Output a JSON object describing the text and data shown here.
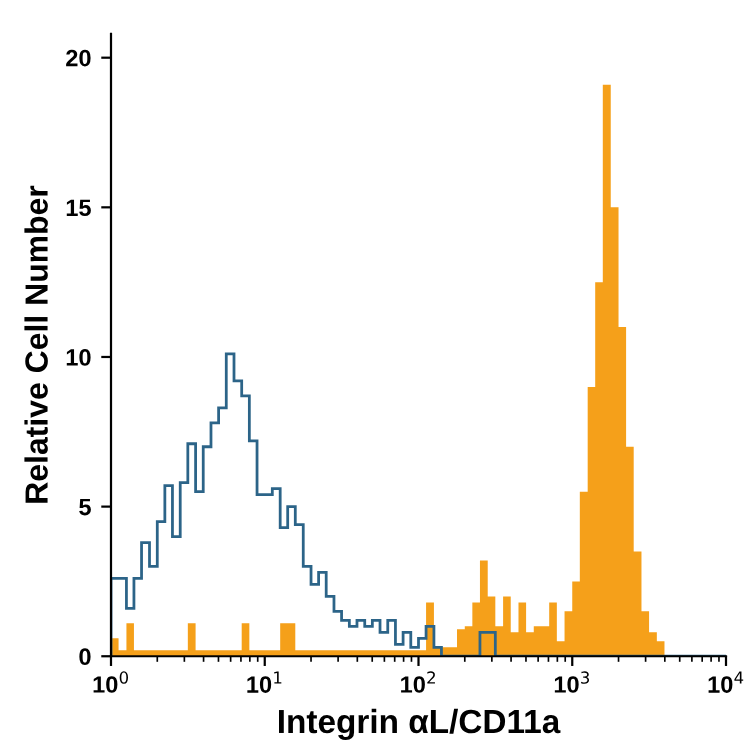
{
  "chart_data": {
    "type": "histogram",
    "xlabel": "Integrin αL/CD11a",
    "ylabel": "Relative Cell Number",
    "log": "x",
    "xlim": [
      1,
      10000
    ],
    "xticks": [
      {
        "value": 1,
        "label": "10$^{0}$"
      },
      {
        "value": 10,
        "label": "10$^{1}$"
      },
      {
        "value": 100,
        "label": "10$^{2}$"
      },
      {
        "value": 1000,
        "label": "10$^{3}$"
      },
      {
        "value": 10000,
        "label": "10$^{4}$"
      }
    ],
    "ylim": [
      0,
      20.8
    ],
    "yticks": [
      0,
      5,
      10,
      15,
      20
    ],
    "grid": false,
    "legend": false,
    "bins": [
      1,
      1.12,
      1.26,
      1.41,
      1.58,
      1.78,
      2,
      2.24,
      2.51,
      2.82,
      3.16,
      3.55,
      3.98,
      4.47,
      5.01,
      5.62,
      6.31,
      7.08,
      7.94,
      8.91,
      10,
      11.2,
      12.6,
      14.1,
      15.8,
      17.8,
      20,
      22.4,
      25.1,
      28.2,
      31.6,
      35.5,
      39.8,
      44.7,
      50.1,
      56.2,
      63.1,
      70.8,
      79.4,
      89.1,
      100,
      112,
      126,
      141,
      158,
      178,
      200,
      224,
      251,
      282,
      316,
      355,
      398,
      447,
      501,
      562,
      631,
      708,
      794,
      891,
      1000,
      1120,
      1260,
      1410,
      1580,
      1780,
      2000,
      2240,
      2510,
      2820,
      3160,
      3550,
      3980,
      4470,
      5010,
      5620,
      6310,
      7080,
      7940,
      8910,
      10000
    ],
    "series": [
      {
        "color": "#f5a01a",
        "values": [
          0.6,
          0.2,
          1.1,
          0.2,
          0.2,
          0.2,
          0.2,
          0.2,
          0.2,
          0.2,
          1.1,
          0.2,
          0.2,
          0.2,
          0.2,
          0.2,
          0.2,
          1.1,
          0.2,
          0.2,
          0.2,
          0.2,
          1.1,
          1.1,
          0.2,
          0.2,
          0.2,
          0.2,
          0.2,
          0.2,
          0.2,
          0.2,
          0.2,
          0.2,
          0.2,
          0.2,
          0.2,
          0.2,
          0.2,
          0.2,
          0.2,
          1.8,
          0.3,
          0.3,
          0.3,
          0.9,
          1.0,
          1.8,
          3.2,
          2.0,
          1.0,
          2.0,
          0.8,
          1.8,
          0.8,
          1.0,
          1.0,
          1.8,
          0.5,
          1.5,
          2.5,
          5.5,
          9,
          12.5,
          19.1,
          15,
          11,
          7,
          3.5,
          1.5,
          0.8,
          0.5,
          0,
          0,
          0,
          0,
          0,
          0,
          0,
          0
        ]
      },
      {
        "color": "#2c6488",
        "values": [
          2.6,
          2.6,
          1.6,
          2.6,
          3.8,
          3.0,
          4.5,
          5.7,
          4.0,
          5.8,
          7.1,
          5.5,
          7.0,
          7.8,
          8.3,
          10.1,
          9.2,
          8.7,
          7.2,
          5.4,
          5.4,
          5.6,
          4.3,
          5.0,
          4.4,
          3.0,
          2.4,
          2.8,
          2.0,
          1.5,
          1.2,
          1.0,
          1.2,
          1.0,
          1.2,
          0.8,
          1.2,
          0.4,
          0.8,
          0.3,
          0.6,
          1.0,
          0.3,
          0,
          0,
          0,
          0,
          0,
          0.8,
          0.8,
          0,
          0,
          0,
          0,
          0,
          0,
          0,
          0,
          0,
          0,
          0,
          0,
          0,
          0,
          0,
          0,
          0,
          0,
          0,
          0,
          0,
          0,
          0,
          0,
          0,
          0,
          0,
          0,
          0,
          0
        ]
      }
    ]
  }
}
